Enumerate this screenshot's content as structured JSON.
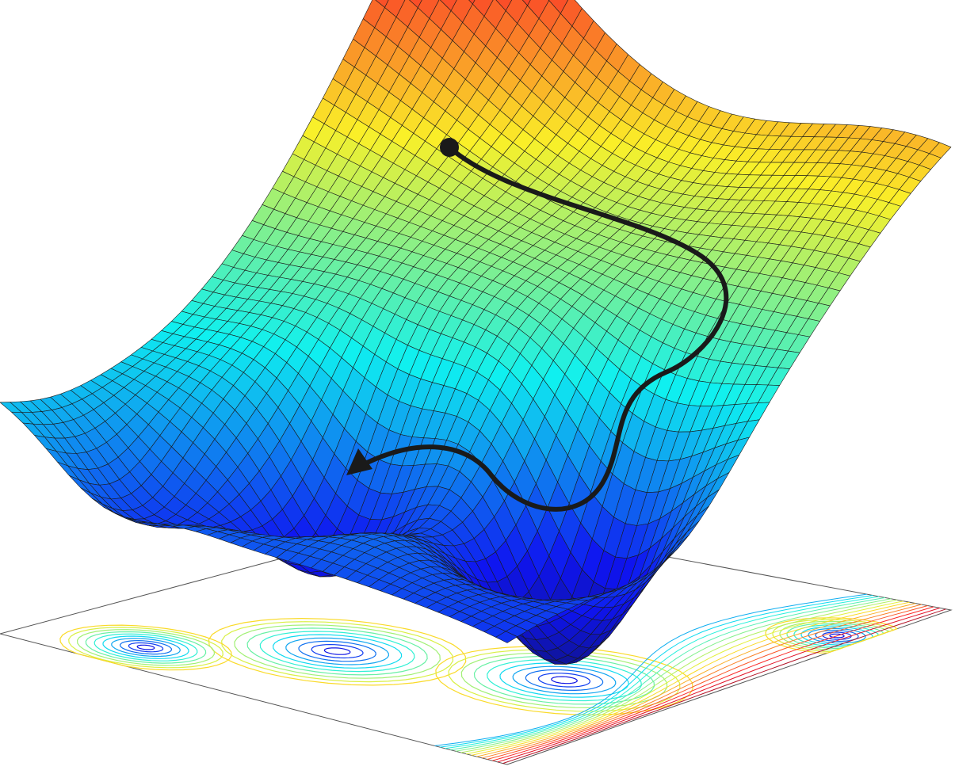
{
  "figure": {
    "kind": "3d-surface-with-contour-projection",
    "colormap": "jet",
    "mesh_color": "#1a1a1a",
    "background": "#ffffff",
    "path": {
      "color": "#1a1a1a",
      "start_marker": "filled-circle",
      "end_marker": "arrowhead-icon"
    },
    "colors": {
      "high": "#8b0f12",
      "mid_high": "#f7e11a",
      "mid": "#6cc3a0",
      "mid_low": "#2ab6ea",
      "low": "#1f2f8f"
    }
  }
}
